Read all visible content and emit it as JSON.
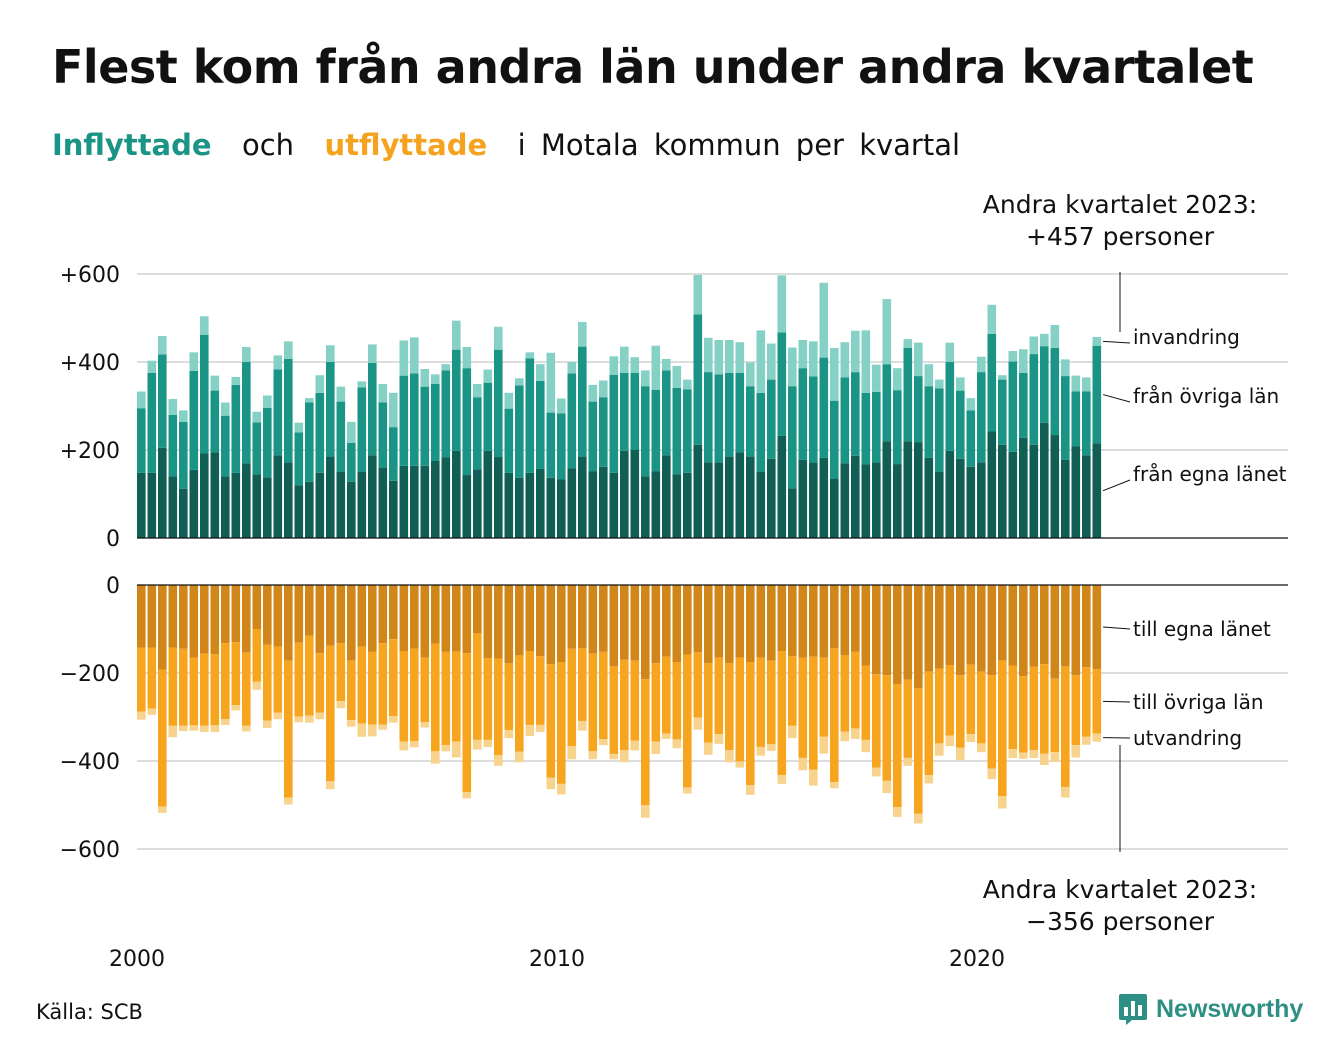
{
  "title": "Flest kom från andra län under andra kvartalet",
  "subtitle": {
    "in_label": "Inflyttade",
    "middle": "och",
    "out_label": "utflyttade",
    "rest": "i Motala kommun per kvartal"
  },
  "source": "Källa: SCB",
  "logo": {
    "text": "Newsworthy",
    "icon": "bar-chart-speech-bubble-icon"
  },
  "colors": {
    "in_same_county": "#115e54",
    "in_other_counties": "#1a9585",
    "in_immigration": "#86d1c6",
    "out_same_county": "#d1861a",
    "out_other_counties": "#f7a51f",
    "out_emigration": "#f7d38e",
    "grid": "#dddddd",
    "text": "#111111",
    "logo": "#2e8f84"
  },
  "chart_data": {
    "type": "bar",
    "stacked": true,
    "x_unit": "quarter",
    "start": "2000 Q1",
    "end": "2023 Q2",
    "xticks": [
      "2000",
      "2010",
      "2020"
    ],
    "panels": [
      {
        "name": "Inflyttade",
        "yticks": [
          "+600",
          "+400",
          "+200",
          "0"
        ],
        "ylim": [
          0,
          600
        ],
        "series": [
          {
            "name": "från egna länet",
            "values": [
              148,
              148,
              205,
              140,
              112,
              155,
              192,
              195,
              140,
              148,
              170,
              145,
              138,
              188,
              172,
              120,
              128,
              148,
              185,
              150,
              128,
              150,
              188,
              160,
              130,
              164,
              164,
              164,
              175,
              183,
              198,
              143,
              156,
              198,
              184,
              148,
              137,
              148,
              157,
              137,
              133,
              158,
              185,
              152,
              162,
              148,
              198,
              200,
              140,
              152,
              188,
              145,
              148,
              212,
              172,
              172,
              185,
              195,
              185,
              150,
              180,
              232,
              113,
              178,
              172,
              182,
              135,
              170,
              187,
              167,
              172,
              220,
              168,
              220,
              218,
              182,
              150,
              198,
              180,
              162,
              172,
              242,
              212,
              196,
              228,
              212,
              262,
              234,
              178,
              208,
              188,
              215
            ]
          },
          {
            "name": "från övriga län",
            "values": [
              147,
              227,
              212,
              140,
              152,
              225,
              270,
              140,
              138,
              200,
              230,
              118,
              158,
              195,
              235,
              120,
              180,
              182,
              215,
              160,
              88,
              192,
              210,
              148,
              122,
              205,
              210,
              180,
              175,
              198,
              230,
              243,
              164,
              155,
              244,
              146,
              210,
              260,
              200,
              148,
              150,
              216,
              250,
              158,
              158,
              223,
              177,
              175,
              205,
              185,
              193,
              196,
              190,
              296,
              205,
              200,
              190,
              180,
              160,
              180,
              180,
              235,
              232,
              208,
              195,
              228,
              177,
              195,
              190,
              163,
              160,
              175,
              168,
              212,
              150,
              163,
              190,
              202,
              155,
              128,
              205,
              222,
              148,
              205,
              147,
              206,
              174,
              198,
              190,
              125,
              145,
              222
            ]
          },
          {
            "name": "invandring",
            "values": [
              38,
              28,
              42,
              36,
              26,
              42,
              42,
              34,
              30,
              18,
              34,
              24,
              28,
              32,
              40,
              22,
              10,
              40,
              38,
              34,
              48,
              14,
              42,
              42,
              78,
              80,
              82,
              40,
              22,
              14,
              66,
              48,
              30,
              30,
              52,
              36,
              16,
              14,
              38,
              136,
              34,
              26,
              56,
              38,
              38,
              42,
              60,
              36,
              36,
              100,
              26,
              50,
              22,
              90,
              78,
              78,
              75,
              70,
              54,
              142,
              82,
              130,
              88,
              64,
              80,
              170,
              120,
              80,
              94,
              142,
              62,
              148,
              50,
              20,
              76,
              50,
              20,
              44,
              30,
              28,
              35,
              66,
              10,
              24,
              54,
              40,
              28,
              52,
              38,
              36,
              32,
              20
            ]
          }
        ]
      },
      {
        "name": "Utflyttade",
        "yticks": [
          "0",
          "−200",
          "−400",
          "−600"
        ],
        "ylim": [
          -600,
          0
        ],
        "series": [
          {
            "name": "till egna länet",
            "values": [
              -142,
              -142,
              -192,
              -142,
              -145,
              -165,
              -156,
              -157,
              -132,
              -130,
              -154,
              -100,
              -136,
              -140,
              -172,
              -131,
              -115,
              -155,
              -138,
              -132,
              -172,
              -140,
              -152,
              -132,
              -123,
              -150,
              -145,
              -165,
              -133,
              -152,
              -151,
              -155,
              -110,
              -166,
              -167,
              -178,
              -160,
              -150,
              -162,
              -180,
              -175,
              -145,
              -144,
              -156,
              -152,
              -185,
              -170,
              -172,
              -214,
              -178,
              -163,
              -175,
              -158,
              -153,
              -178,
              -165,
              -178,
              -165,
              -175,
              -165,
              -172,
              -150,
              -162,
              -165,
              -163,
              -165,
              -144,
              -160,
              -152,
              -183,
              -203,
              -205,
              -225,
              -215,
              -235,
              -197,
              -190,
              -182,
              -205,
              -181,
              -197,
              -205,
              -172,
              -183,
              -207,
              -186,
              -180,
              -213,
              -185,
              -205,
              -187,
              -191
            ]
          },
          {
            "name": "till övriga län",
            "values": [
              -146,
              -139,
              -312,
              -178,
              -175,
              -154,
              -164,
              -162,
              -173,
              -143,
              -166,
              -120,
              -172,
              -150,
              -311,
              -168,
              -182,
              -135,
              -308,
              -132,
              -135,
              -175,
              -165,
              -185,
              -175,
              -206,
              -210,
              -147,
              -245,
              -212,
              -205,
              -316,
              -242,
              -186,
              -220,
              -152,
              -219,
              -168,
              -156,
              -258,
              -277,
              -221,
              -165,
              -222,
              -198,
              -199,
              -205,
              -182,
              -286,
              -178,
              -175,
              -176,
              -302,
              -148,
              -180,
              -174,
              -197,
              -236,
              -280,
              -203,
              -190,
              -282,
              -158,
              -228,
              -257,
              -180,
              -304,
              -173,
              -174,
              -169,
              -212,
              -240,
              -280,
              -178,
              -285,
              -235,
              -170,
              -160,
              -165,
              -158,
              -163,
              -212,
              -308,
              -190,
              -174,
              -189,
              -203,
              -167,
              -274,
              -159,
              -158,
              -147
            ]
          },
          {
            "name": "utvandring",
            "values": [
              -18,
              -14,
              -14,
              -26,
              -12,
              -12,
              -14,
              -15,
              -13,
              -12,
              -13,
              -18,
              -17,
              -15,
              -16,
              -13,
              -16,
              -15,
              -18,
              -16,
              -15,
              -30,
              -27,
              -12,
              -15,
              -20,
              -14,
              -12,
              -28,
              -14,
              -36,
              -14,
              -22,
              -16,
              -24,
              -18,
              -24,
              -25,
              -16,
              -26,
              -24,
              -30,
              -22,
              -18,
              -14,
              -12,
              -28,
              -22,
              -29,
              -28,
              -12,
              -20,
              -14,
              -28,
              -28,
              -22,
              -28,
              -14,
              -22,
              -20,
              -15,
              -20,
              -28,
              -28,
              -36,
              -38,
              -14,
              -22,
              -24,
              -28,
              -20,
              -28,
              -22,
              -18,
              -22,
              -19,
              -28,
              -24,
              -28,
              -18,
              -20,
              -24,
              -28,
              -20,
              -14,
              -18,
              -26,
              -22,
              -24,
              -28,
              -18,
              -18
            ]
          }
        ]
      }
    ],
    "series_labels_in": [
      "invandring",
      "från övriga län",
      "från egna länet"
    ],
    "series_labels_out": [
      "till egna länet",
      "till övriga län",
      "utvandring"
    ],
    "annotations": {
      "in": {
        "line1": "Andra kvartalet 2023:",
        "line2": "+457 personer"
      },
      "out": {
        "line1": "Andra kvartalet 2023:",
        "line2": "−356 personer"
      }
    }
  }
}
